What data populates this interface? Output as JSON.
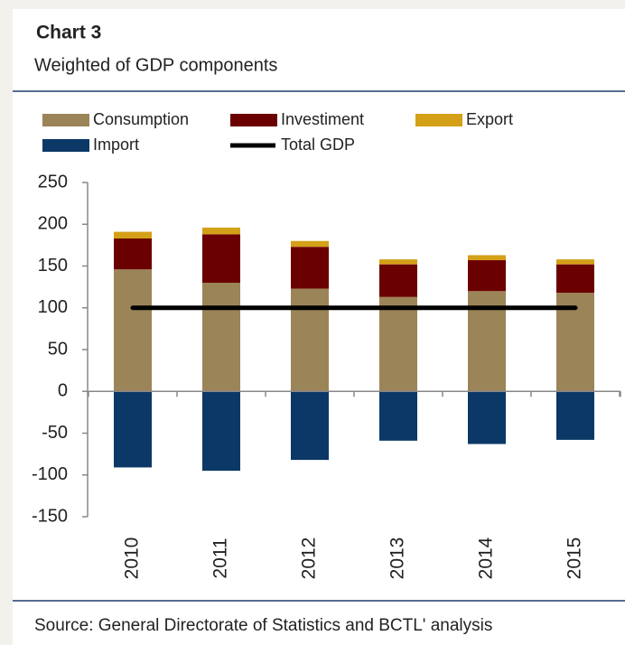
{
  "chart_data": {
    "type": "bar",
    "stacked": true,
    "title": "Chart 3",
    "subtitle": "Weighted of GDP components",
    "source": "Source: General Directorate of Statistics and BCTL' analysis",
    "categories": [
      "2010",
      "2011",
      "2012",
      "2013",
      "2014",
      "2015"
    ],
    "series": [
      {
        "name": "Consumption",
        "color": "#9b8457",
        "values": [
          146,
          130,
          123,
          113,
          120,
          118
        ]
      },
      {
        "name": "Investiment",
        "color": "#6b0000",
        "values": [
          37,
          58,
          50,
          39,
          37,
          34
        ]
      },
      {
        "name": "Export",
        "color": "#d4a017",
        "values": [
          8,
          8,
          7,
          6,
          6,
          6
        ]
      },
      {
        "name": "Import",
        "color": "#0b3866",
        "values": [
          -91,
          -95,
          -82,
          -59,
          -63,
          -58
        ]
      },
      {
        "name": "Total GDP",
        "color": "#000000",
        "type": "line",
        "values": [
          100,
          100,
          100,
          100,
          100,
          100
        ]
      }
    ],
    "ylim": [
      -150,
      250
    ],
    "yticks": [
      -150,
      -100,
      -50,
      0,
      50,
      100,
      150,
      200,
      250
    ],
    "grid": false
  }
}
